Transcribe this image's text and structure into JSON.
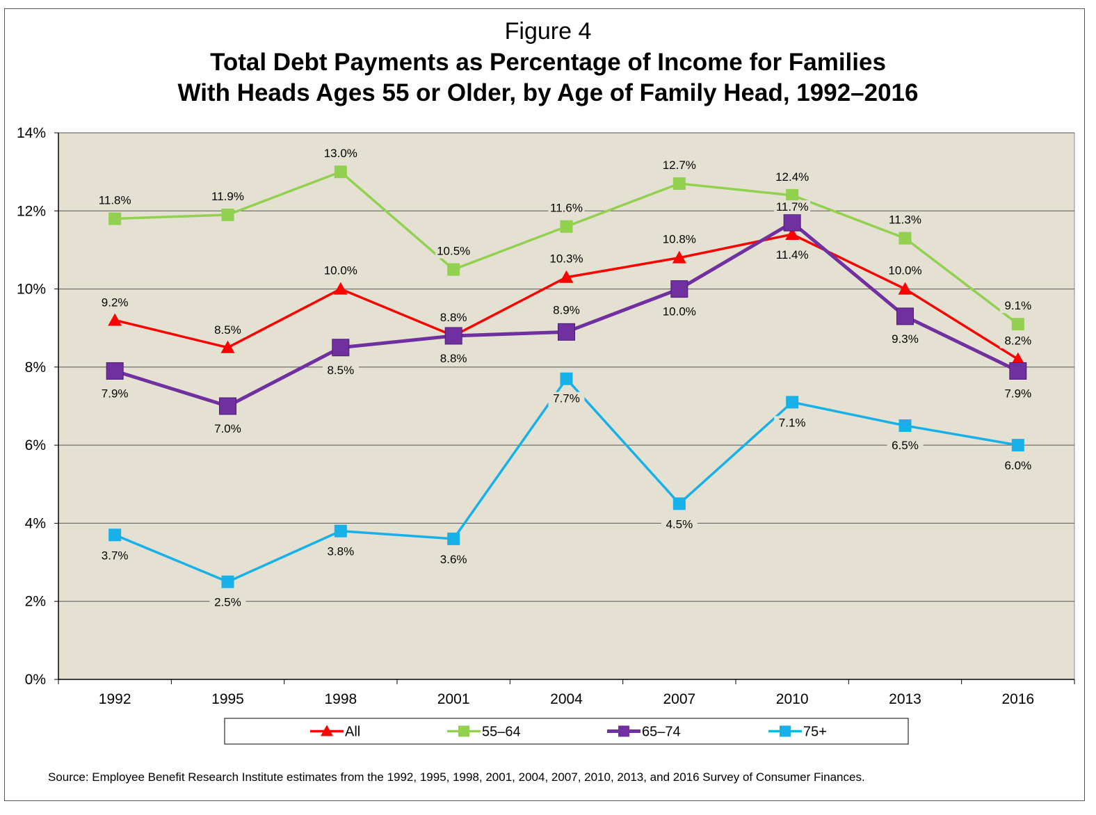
{
  "figure_label": "Figure 4",
  "title_line1": "Total Debt Payments as Percentage of Income for Families",
  "title_line2": "With Heads Ages 55 or Older, by Age of Family Head, 1992–2016",
  "source": "Source: Employee Benefit Research Institute estimates from the 1992, 1995, 1998, 2001, 2004, 2007, 2010, 2013, and 2016 Survey of Consumer Finances.",
  "colors": {
    "plot_background": "#e4e1d3",
    "gridline": "#555555",
    "All": "#ff0000",
    "55–64": "#92d050",
    "65–74": "#7030a0",
    "75+": "#17b0e8"
  },
  "chart_data": {
    "type": "line",
    "categories": [
      "1992",
      "1995",
      "1998",
      "2001",
      "2004",
      "2007",
      "2010",
      "2013",
      "2016"
    ],
    "ylim": [
      0,
      14
    ],
    "yticks": [
      "0%",
      "2%",
      "4%",
      "6%",
      "8%",
      "10%",
      "12%",
      "14%"
    ],
    "grid": true,
    "legend_position": "bottom",
    "series": [
      {
        "name": "All",
        "marker": "triangle",
        "values": [
          9.2,
          8.5,
          10.0,
          8.8,
          10.3,
          10.8,
          11.4,
          10.0,
          8.2
        ],
        "labels": [
          "9.2%",
          "8.5%",
          "10.0%",
          "8.8%",
          "10.3%",
          "10.8%",
          "11.4%",
          "10.0%",
          "8.2%"
        ]
      },
      {
        "name": "55–64",
        "marker": "square",
        "values": [
          11.8,
          11.9,
          13.0,
          10.5,
          11.6,
          12.7,
          12.4,
          11.3,
          9.1
        ],
        "labels": [
          "11.8%",
          "11.9%",
          "13.0%",
          "10.5%",
          "11.6%",
          "12.7%",
          "12.4%",
          "11.3%",
          "9.1%"
        ]
      },
      {
        "name": "65–74",
        "marker": "square",
        "values": [
          7.9,
          7.0,
          8.5,
          8.8,
          8.9,
          10.0,
          11.7,
          9.3,
          7.9
        ],
        "labels": [
          "7.9%",
          "7.0%",
          "8.5%",
          "8.8%",
          "8.9%",
          "10.0%",
          "11.7%",
          "9.3%",
          "7.9%"
        ]
      },
      {
        "name": "75+",
        "marker": "square",
        "values": [
          3.7,
          2.5,
          3.8,
          3.6,
          7.7,
          4.5,
          7.1,
          6.5,
          6.0
        ],
        "labels": [
          "3.7%",
          "2.5%",
          "3.8%",
          "3.6%",
          "7.7%",
          "4.5%",
          "7.1%",
          "6.5%",
          "6.0%"
        ]
      }
    ]
  }
}
